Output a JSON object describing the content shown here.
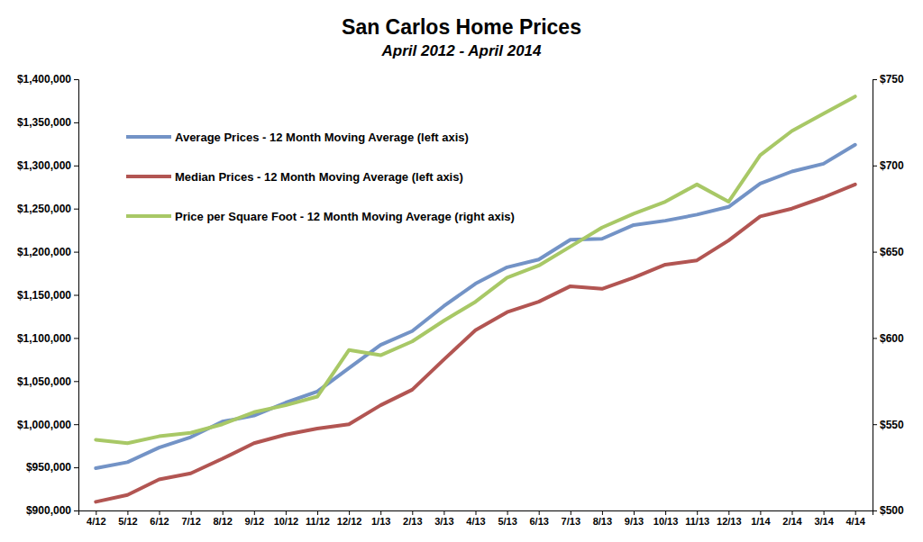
{
  "chart_data": {
    "type": "line",
    "title": "San Carlos Home Prices",
    "subtitle": "April 2012 - April 2014",
    "categories": [
      "4/12",
      "5/12",
      "6/12",
      "7/12",
      "8/12",
      "9/12",
      "10/12",
      "11/12",
      "12/12",
      "1/13",
      "2/13",
      "3/13",
      "4/13",
      "5/13",
      "6/13",
      "7/13",
      "8/13",
      "9/13",
      "10/13",
      "11/13",
      "12/13",
      "1/14",
      "2/14",
      "3/14",
      "4/14"
    ],
    "series": [
      {
        "name": "Average Prices - 12 Month Moving Average (left axis)",
        "color": "#7393c6",
        "values": [
          949000,
          956000,
          973000,
          985000,
          1003000,
          1010000,
          1025000,
          1038000,
          1065000,
          1092000,
          1108000,
          1137000,
          1163000,
          1182000,
          1191000,
          1214000,
          1215000,
          1231000,
          1236000,
          1243000,
          1252000,
          1279000,
          1293000,
          1302000,
          1324000
        ]
      },
      {
        "name": "Median Prices - 12 Month Moving Average (left axis)",
        "color": "#b25552",
        "values": [
          910000,
          918000,
          936000,
          943000,
          960000,
          978000,
          988000,
          995000,
          1000000,
          1022000,
          1040000,
          1075000,
          1109000,
          1130000,
          1142000,
          1160000,
          1157000,
          1170000,
          1185000,
          1190000,
          1213000,
          1241000,
          1250000,
          1263000,
          1278000
        ]
      },
      {
        "name": "Price per Square Foot - 12 Month Moving Average (right axis)",
        "color": "#a8c866",
        "axis": "y2",
        "values": [
          541,
          539,
          543,
          545,
          550,
          557,
          561,
          566,
          593,
          590,
          598,
          610,
          621,
          635,
          642,
          653,
          664,
          672,
          679,
          689,
          679,
          706,
          720,
          730,
          740
        ]
      }
    ],
    "ylim": [
      900000,
      1400000
    ],
    "yticks": [
      {
        "value": 900000,
        "label": "$900,000"
      },
      {
        "value": 950000,
        "label": "$950,000"
      },
      {
        "value": 1000000,
        "label": "$1,000,000"
      },
      {
        "value": 1050000,
        "label": "$1,050,000"
      },
      {
        "value": 1100000,
        "label": "$1,100,000"
      },
      {
        "value": 1150000,
        "label": "$1,150,000"
      },
      {
        "value": 1200000,
        "label": "$1,200,000"
      },
      {
        "value": 1250000,
        "label": "$1,250,000"
      },
      {
        "value": 1300000,
        "label": "$1,300,000"
      },
      {
        "value": 1350000,
        "label": "$1,350,000"
      },
      {
        "value": 1400000,
        "label": "$1,400,000"
      }
    ],
    "y2lim": [
      500,
      750
    ],
    "y2ticks": [
      {
        "value": 500,
        "label": "$500"
      },
      {
        "value": 550,
        "label": "$550"
      },
      {
        "value": 600,
        "label": "$600"
      },
      {
        "value": 650,
        "label": "$650"
      },
      {
        "value": 700,
        "label": "$700"
      },
      {
        "value": 750,
        "label": "$750"
      }
    ],
    "grid": false,
    "legend": "upper-left"
  }
}
